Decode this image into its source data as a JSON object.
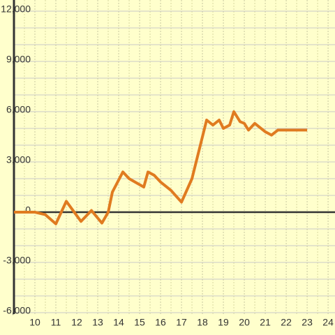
{
  "chart_data": {
    "type": "line",
    "x": [
      9,
      10,
      10.5,
      11,
      11.5,
      12.2,
      12.7,
      13.2,
      13.5,
      13.7,
      14.2,
      14.5,
      15.2,
      15.4,
      15.7,
      16,
      16.5,
      17,
      17.5,
      17.8,
      18.2,
      18.5,
      18.8,
      19,
      19.3,
      19.5,
      19.8,
      20,
      20.2,
      20.5,
      21,
      21.3,
      21.6,
      22,
      23
    ],
    "series": [
      {
        "color": "#e07b20",
        "values": [
          0,
          0,
          -150,
          -700,
          650,
          -550,
          100,
          -650,
          0,
          1200,
          2400,
          2000,
          1500,
          2400,
          2200,
          1800,
          1300,
          600,
          2000,
          3500,
          5500,
          5200,
          5500,
          5000,
          5200,
          6000,
          5400,
          5300,
          4900,
          5300,
          4800,
          4600,
          4900,
          4900,
          4900
        ]
      }
    ],
    "xlim": [
      9,
      24.33
    ],
    "xticks": [
      10,
      11,
      12,
      13,
      14,
      15,
      16,
      17,
      18,
      19,
      20,
      21,
      22,
      23,
      24
    ],
    "ylim": [
      -6000,
      12000
    ],
    "yticks": [
      {
        "value": -6000,
        "label": "-6,000"
      },
      {
        "value": -3000,
        "label": "-3,000"
      },
      0,
      {
        "value": 3000,
        "label": "3,000"
      },
      {
        "value": 6000,
        "label": "6,000"
      },
      {
        "value": 9000,
        "label": "9,000"
      },
      {
        "value": 12000,
        "label": "12,000"
      }
    ],
    "grid": true
  }
}
